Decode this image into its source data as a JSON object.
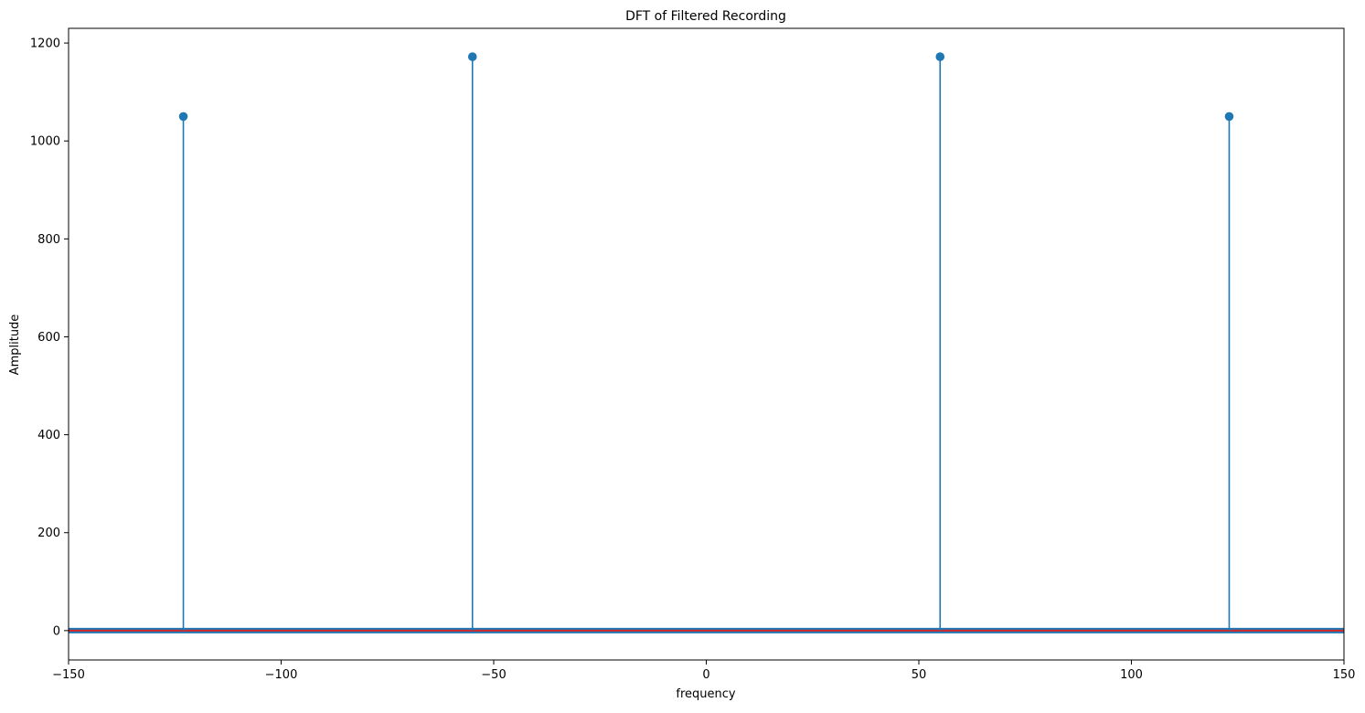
{
  "chart_data": {
    "type": "stem",
    "title": "DFT of Filtered Recording",
    "xlabel": "frequency",
    "ylabel": "Amplitude",
    "xlim": [
      -150,
      150
    ],
    "ylim": [
      -60,
      1230
    ],
    "xticks": [
      -150,
      -100,
      -50,
      0,
      50,
      100,
      150
    ],
    "xtick_labels": [
      "−150",
      "−100",
      "−50",
      "0",
      "50",
      "100",
      "150"
    ],
    "yticks": [
      0,
      200,
      400,
      600,
      800,
      1000,
      1200
    ],
    "ytick_labels": [
      "0",
      "200",
      "400",
      "600",
      "800",
      "1000",
      "1200"
    ],
    "grid": false,
    "legend": "none",
    "colors": {
      "stem": "#1f77b4",
      "baseline": "#d62728"
    },
    "baseline": 0,
    "peaks": [
      {
        "x": -123,
        "y": 1050
      },
      {
        "x": -55,
        "y": 1172
      },
      {
        "x": 55,
        "y": 1172
      },
      {
        "x": 123,
        "y": 1050
      }
    ],
    "noise_floor": {
      "x_range": [
        -150,
        150
      ],
      "y": 0
    }
  }
}
